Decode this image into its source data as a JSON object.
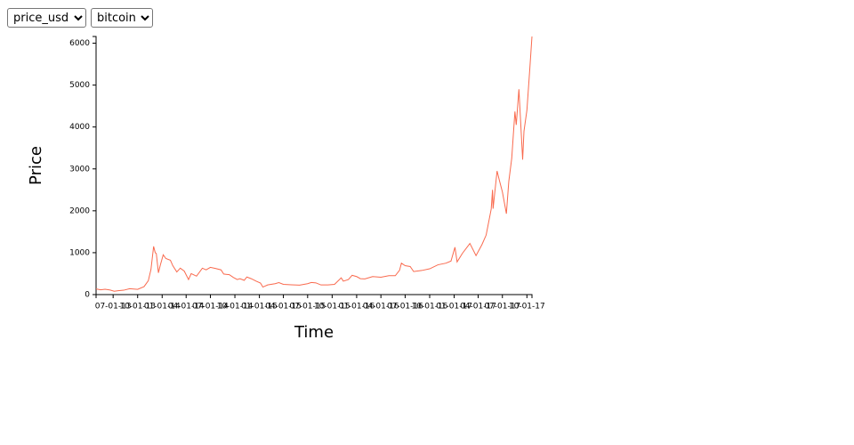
{
  "controls": [
    {
      "selected": "price_usd"
    },
    {
      "selected": "bitcoin"
    }
  ],
  "chart_data": {
    "type": "line",
    "xlabel": "Time",
    "ylabel": "Price",
    "x": [
      "2013-04-28",
      "2013-05-15",
      "2013-06-01",
      "2013-06-20",
      "2013-07-05",
      "2013-07-20",
      "2013-08-10",
      "2013-09-01",
      "2013-10-01",
      "2013-10-25",
      "2013-11-10",
      "2013-11-20",
      "2013-11-30",
      "2013-12-06",
      "2013-12-10",
      "2013-12-18",
      "2013-12-25",
      "2014-01-05",
      "2014-01-15",
      "2014-02-01",
      "2014-02-10",
      "2014-02-25",
      "2014-03-10",
      "2014-03-25",
      "2014-04-10",
      "2014-04-20",
      "2014-05-10",
      "2014-06-01",
      "2014-06-15",
      "2014-07-01",
      "2014-07-20",
      "2014-08-10",
      "2014-08-20",
      "2014-09-10",
      "2014-09-25",
      "2014-10-10",
      "2014-10-20",
      "2014-11-05",
      "2014-11-15",
      "2014-12-01",
      "2014-12-20",
      "2015-01-05",
      "2015-01-14",
      "2015-02-01",
      "2015-03-01",
      "2015-03-15",
      "2015-04-01",
      "2015-05-01",
      "2015-06-01",
      "2015-07-01",
      "2015-07-15",
      "2015-08-01",
      "2015-08-20",
      "2015-09-15",
      "2015-10-10",
      "2015-11-04",
      "2015-11-12",
      "2015-12-01",
      "2015-12-15",
      "2016-01-01",
      "2016-01-15",
      "2016-02-01",
      "2016-03-01",
      "2016-04-01",
      "2016-05-01",
      "2016-05-25",
      "2016-06-10",
      "2016-06-17",
      "2016-07-01",
      "2016-07-20",
      "2016-08-02",
      "2016-09-01",
      "2016-10-01",
      "2016-11-01",
      "2016-12-01",
      "2016-12-20",
      "2017-01-04",
      "2017-01-12",
      "2017-02-01",
      "2017-03-01",
      "2017-03-24",
      "2017-04-15",
      "2017-05-01",
      "2017-05-20",
      "2017-05-25",
      "2017-05-27",
      "2017-06-11",
      "2017-06-20",
      "2017-07-01",
      "2017-07-16",
      "2017-07-25",
      "2017-08-05",
      "2017-08-17",
      "2017-08-22",
      "2017-09-01",
      "2017-09-15",
      "2017-09-20",
      "2017-10-01",
      "2017-10-12",
      "2017-10-20"
    ],
    "series": [
      {
        "name": "price_usd",
        "color": "#f96a4e",
        "values": [
          135,
          115,
          128,
          108,
          80,
          92,
          105,
          140,
          125,
          190,
          330,
          600,
          1150,
          1000,
          980,
          520,
          700,
          950,
          860,
          820,
          690,
          540,
          630,
          560,
          360,
          500,
          440,
          630,
          590,
          650,
          625,
          590,
          490,
          475,
          410,
          360,
          380,
          340,
          420,
          380,
          320,
          275,
          180,
          230,
          260,
          285,
          245,
          235,
          225,
          260,
          290,
          280,
          230,
          230,
          245,
          400,
          320,
          360,
          460,
          430,
          380,
          375,
          430,
          415,
          450,
          450,
          580,
          750,
          690,
          670,
          550,
          575,
          615,
          710,
          750,
          800,
          1130,
          780,
          985,
          1220,
          930,
          1190,
          1420,
          2040,
          2500,
          2050,
          2950,
          2720,
          2450,
          1930,
          2700,
          3250,
          4370,
          4050,
          4900,
          3220,
          3900,
          4400,
          5400,
          6160
        ]
      }
    ],
    "xlim": [
      "2013-04-28",
      "2017-10-20"
    ],
    "xticks": [
      {
        "value": "2013-07-01",
        "label": "07-01-13"
      },
      {
        "value": "2013-10-01",
        "label": "10-01-13"
      },
      {
        "value": "2014-01-01",
        "label": "01-01-14"
      },
      {
        "value": "2014-04-01",
        "label": "04-01-14"
      },
      {
        "value": "2014-07-01",
        "label": "07-01-14"
      },
      {
        "value": "2014-10-01",
        "label": "10-01-14"
      },
      {
        "value": "2015-01-01",
        "label": "01-01-15"
      },
      {
        "value": "2015-04-01",
        "label": "04-01-15"
      },
      {
        "value": "2015-07-01",
        "label": "07-01-15"
      },
      {
        "value": "2015-10-01",
        "label": "10-01-15"
      },
      {
        "value": "2016-01-01",
        "label": "01-01-16"
      },
      {
        "value": "2016-04-01",
        "label": "04-01-16"
      },
      {
        "value": "2016-07-01",
        "label": "07-01-16"
      },
      {
        "value": "2016-10-01",
        "label": "10-01-16"
      },
      {
        "value": "2017-01-01",
        "label": "01-01-17"
      },
      {
        "value": "2017-04-01",
        "label": "04-01-17"
      },
      {
        "value": "2017-07-01",
        "label": "07-01-17"
      },
      {
        "value": "2017-10-01",
        "label": "10-01-17"
      }
    ],
    "ylim": [
      0,
      6160
    ],
    "yticks": [
      0,
      1000,
      2000,
      3000,
      4000,
      5000,
      6000
    ]
  }
}
